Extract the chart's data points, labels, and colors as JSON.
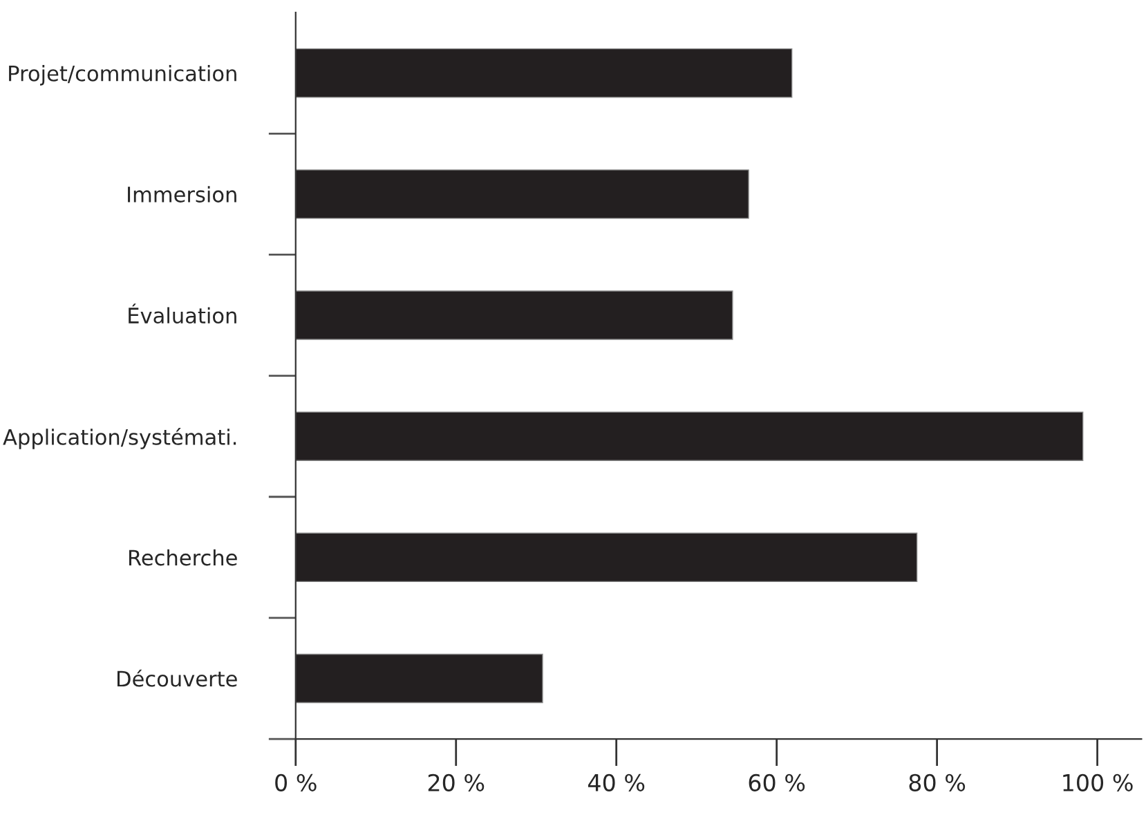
{
  "chart_data": {
    "type": "bar",
    "orientation": "horizontal",
    "categories": [
      "Projet/communication",
      "Immersion",
      "Évaluation",
      "Application/systémati.",
      "Recherche",
      "Découverte"
    ],
    "values": [
      61.9,
      56.5,
      54.5,
      98.2,
      77.5,
      30.8
    ],
    "color": "#231f20",
    "xlim": [
      0,
      105.5
    ],
    "xticks": [
      {
        "value": 0,
        "label": "0 %"
      },
      {
        "value": 20,
        "label": "20 %"
      },
      {
        "value": 40,
        "label": "40 %"
      },
      {
        "value": 60,
        "label": "60 %"
      },
      {
        "value": 80,
        "label": "80 %"
      },
      {
        "value": 100,
        "label": "100 %"
      }
    ],
    "legend": false
  }
}
